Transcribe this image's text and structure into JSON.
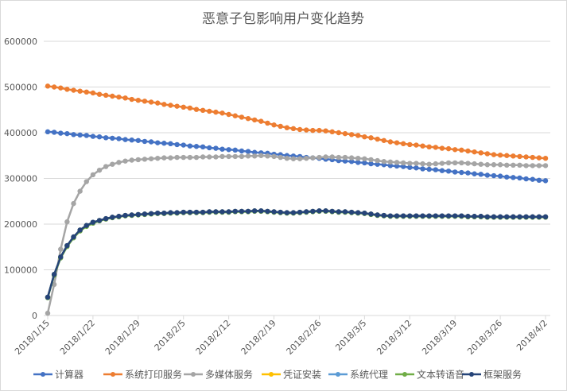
{
  "chart_data": {
    "type": "line",
    "title": "恶意子包影响用户变化趋势",
    "xlabel": "",
    "ylabel": "",
    "ylim": [
      0,
      600000
    ],
    "yticks": [
      "0",
      "100000",
      "200000",
      "300000",
      "400000",
      "500000",
      "600000"
    ],
    "x_start": "2018/1/15",
    "x_end": "2018/4/2",
    "xtick_labels": [
      "2018/1/15",
      "2018/1/22",
      "2018/1/29",
      "2018/2/5",
      "2018/2/12",
      "2018/2/19",
      "2018/2/26",
      "2018/3/5",
      "2018/3/12",
      "2018/3/19",
      "2018/3/26",
      "2018/4/2"
    ],
    "grid": true,
    "legend": "bottom",
    "series": [
      {
        "name": "计算器",
        "color": "#4472C4",
        "values": [
          402000,
          401000,
          399000,
          398000,
          396000,
          395000,
          394000,
          392000,
          391000,
          389000,
          388000,
          387000,
          385000,
          384000,
          383000,
          381000,
          380000,
          378000,
          377000,
          376000,
          374000,
          373000,
          371000,
          370000,
          369000,
          367000,
          366000,
          364000,
          363000,
          362000,
          360000,
          359000,
          357000,
          356000,
          355000,
          353000,
          352000,
          350000,
          349000,
          348000,
          346000,
          345000,
          344000,
          342000,
          341000,
          339000,
          338000,
          337000,
          335000,
          334000,
          332000,
          331000,
          330000,
          328000,
          327000,
          326000,
          324000,
          323000,
          321000,
          320000,
          319000,
          317000,
          316000,
          314000,
          313000,
          312000,
          310000,
          309000,
          307000,
          306000,
          305000,
          303000,
          302000,
          301000,
          299000,
          298000,
          296000,
          295000
        ]
      },
      {
        "name": "系统打印服务",
        "color": "#ED7D31",
        "values": [
          502000,
          500000,
          498000,
          495000,
          493000,
          491000,
          489000,
          487000,
          484000,
          482000,
          480000,
          478000,
          476000,
          473000,
          471000,
          469000,
          467000,
          465000,
          462000,
          460000,
          458000,
          456000,
          454000,
          451000,
          449000,
          447000,
          445000,
          443000,
          440000,
          437000,
          434000,
          431000,
          428000,
          425000,
          421000,
          417000,
          414000,
          411000,
          409000,
          407000,
          406000,
          405000,
          405000,
          404000,
          402000,
          400000,
          398000,
          396000,
          394000,
          391000,
          389000,
          386000,
          383000,
          380000,
          378000,
          376000,
          374000,
          373000,
          371000,
          369000,
          368000,
          366000,
          365000,
          363000,
          362000,
          360000,
          358000,
          356000,
          354000,
          352000,
          351000,
          350000,
          349000,
          348000,
          347000,
          346000,
          345000,
          344000
        ]
      },
      {
        "name": "多媒体服务",
        "color": "#A5A5A5",
        "values": [
          5000,
          68000,
          145000,
          205000,
          245000,
          272000,
          293000,
          308000,
          318000,
          326000,
          331000,
          335000,
          338000,
          340000,
          341000,
          342000,
          343000,
          344000,
          345000,
          345000,
          346000,
          346000,
          346000,
          346000,
          347000,
          347000,
          347000,
          348000,
          348000,
          348000,
          348000,
          349000,
          349000,
          350000,
          349000,
          348000,
          346000,
          344000,
          343000,
          343000,
          344000,
          345000,
          346000,
          347000,
          347000,
          346000,
          346000,
          345000,
          344000,
          343000,
          341000,
          339000,
          337000,
          336000,
          335000,
          334000,
          333000,
          333000,
          332000,
          331000,
          332000,
          333000,
          334000,
          334000,
          334000,
          333000,
          332000,
          331000,
          330000,
          330000,
          330000,
          329000,
          329000,
          329000,
          328000,
          328000,
          328000,
          328000
        ]
      },
      {
        "name": "凭证安装",
        "color": "#FFC000",
        "values": [
          40000,
          90000,
          128000,
          153000,
          172000,
          187000,
          197000,
          204000,
          208000,
          212000,
          215000,
          217000,
          219000,
          220000,
          221000,
          222000,
          223000,
          224000,
          224000,
          225000,
          225000,
          226000,
          226000,
          226000,
          226000,
          227000,
          227000,
          227000,
          227000,
          228000,
          228000,
          228000,
          229000,
          229000,
          228000,
          227000,
          226000,
          225000,
          225000,
          226000,
          227000,
          228000,
          229000,
          229000,
          228000,
          227000,
          227000,
          226000,
          225000,
          224000,
          222000,
          220000,
          219000,
          218000,
          218000,
          218000,
          218000,
          218000,
          218000,
          218000,
          218000,
          218000,
          218000,
          218000,
          218000,
          217000,
          217000,
          217000,
          216000,
          216000,
          216000,
          216000,
          216000,
          216000,
          216000,
          216000,
          216000,
          216000
        ]
      },
      {
        "name": "系统代理",
        "color": "#5B9BD5",
        "values": [
          40000,
          90000,
          128000,
          153000,
          172000,
          187000,
          197000,
          204000,
          208000,
          212000,
          215000,
          217000,
          219000,
          220000,
          221000,
          222000,
          223000,
          224000,
          224000,
          225000,
          225000,
          226000,
          226000,
          226000,
          226000,
          227000,
          227000,
          227000,
          227000,
          228000,
          228000,
          228000,
          229000,
          229000,
          228000,
          227000,
          226000,
          225000,
          225000,
          226000,
          227000,
          228000,
          229000,
          229000,
          228000,
          227000,
          227000,
          226000,
          225000,
          224000,
          222000,
          220000,
          219000,
          218000,
          218000,
          218000,
          218000,
          218000,
          218000,
          218000,
          218000,
          218000,
          218000,
          218000,
          218000,
          217000,
          217000,
          217000,
          216000,
          216000,
          216000,
          216000,
          216000,
          216000,
          216000,
          216000,
          216000,
          216000
        ]
      },
      {
        "name": "文本转语音",
        "color": "#70AD47",
        "values": [
          39000,
          88000,
          126000,
          151000,
          170000,
          185000,
          195000,
          202000,
          207000,
          211000,
          214000,
          216000,
          218000,
          219000,
          220000,
          221000,
          222000,
          223000,
          223000,
          224000,
          224000,
          225000,
          225000,
          225000,
          225000,
          226000,
          226000,
          226000,
          226000,
          227000,
          227000,
          227000,
          228000,
          228000,
          227000,
          226000,
          225000,
          224000,
          224000,
          225000,
          226000,
          227000,
          228000,
          228000,
          227000,
          226000,
          226000,
          225000,
          224000,
          223000,
          221000,
          219000,
          218000,
          217000,
          217000,
          217000,
          217000,
          217000,
          217000,
          217000,
          217000,
          217000,
          217000,
          217000,
          217000,
          216000,
          216000,
          216000,
          215000,
          215000,
          215000,
          215000,
          215000,
          215000,
          215000,
          215000,
          215000,
          215000
        ]
      },
      {
        "name": "框架服务",
        "color": "#264478",
        "values": [
          40000,
          90000,
          128000,
          153000,
          172000,
          187000,
          197000,
          204000,
          208000,
          212000,
          215000,
          217000,
          219000,
          220000,
          221000,
          222000,
          223000,
          224000,
          224000,
          225000,
          225000,
          226000,
          226000,
          226000,
          226000,
          227000,
          227000,
          227000,
          227000,
          228000,
          228000,
          228000,
          229000,
          229000,
          228000,
          227000,
          226000,
          225000,
          225000,
          226000,
          227000,
          228000,
          229000,
          229000,
          228000,
          227000,
          227000,
          226000,
          225000,
          224000,
          222000,
          220000,
          219000,
          218000,
          218000,
          218000,
          218000,
          218000,
          218000,
          218000,
          218000,
          218000,
          218000,
          218000,
          218000,
          217000,
          217000,
          217000,
          216000,
          216000,
          216000,
          216000,
          216000,
          216000,
          216000,
          216000,
          216000,
          216000
        ]
      }
    ]
  }
}
